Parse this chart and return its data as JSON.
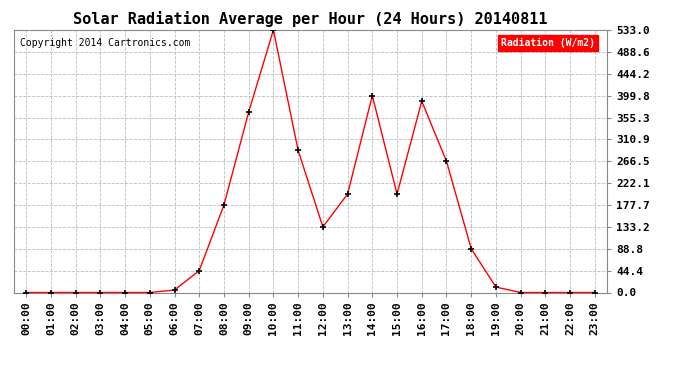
{
  "title": "Solar Radiation Average per Hour (24 Hours) 20140811",
  "copyright": "Copyright 2014 Cartronics.com",
  "legend_label": "Radiation (W/m2)",
  "hours": [
    "00:00",
    "01:00",
    "02:00",
    "03:00",
    "04:00",
    "05:00",
    "06:00",
    "07:00",
    "08:00",
    "09:00",
    "10:00",
    "11:00",
    "12:00",
    "13:00",
    "14:00",
    "15:00",
    "16:00",
    "17:00",
    "18:00",
    "19:00",
    "20:00",
    "21:00",
    "22:00",
    "23:00"
  ],
  "values": [
    0.0,
    0.0,
    0.0,
    0.0,
    0.0,
    0.0,
    5.0,
    44.4,
    177.7,
    366.5,
    533.0,
    288.5,
    133.2,
    199.8,
    399.8,
    199.8,
    388.5,
    266.5,
    88.8,
    11.0,
    0.0,
    0.0,
    0.0,
    0.0
  ],
  "yticks": [
    0.0,
    44.4,
    88.8,
    133.2,
    177.7,
    222.1,
    266.5,
    310.9,
    355.3,
    399.8,
    444.2,
    488.6,
    533.0
  ],
  "ymax": 533.0,
  "line_color": "red",
  "marker_color": "black",
  "bg_color": "#ffffff",
  "grid_color": "#bbbbbb",
  "legend_bg": "red",
  "legend_text_color": "white",
  "title_fontsize": 11,
  "copyright_fontsize": 7,
  "axis_label_fontsize": 8,
  "legend_fontsize": 7
}
